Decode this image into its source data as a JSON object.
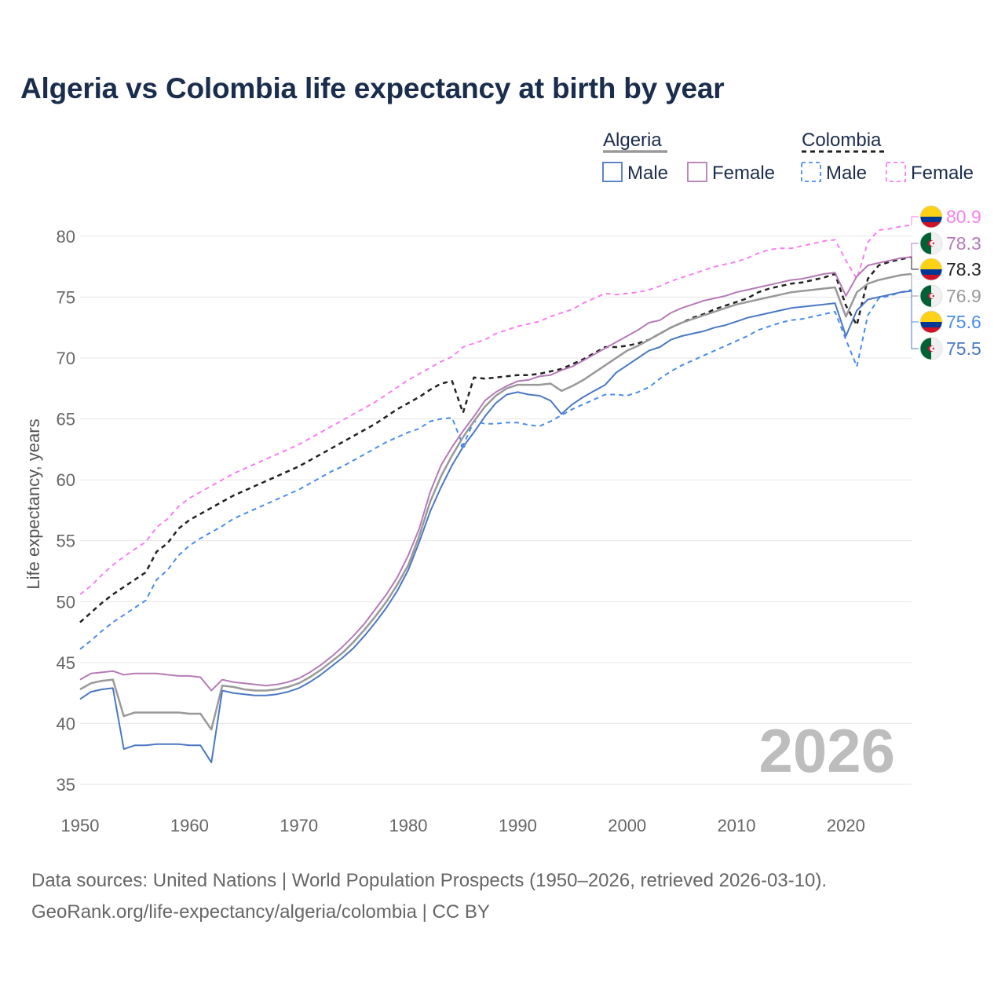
{
  "chart_data": {
    "type": "line",
    "title": "Algeria vs Colombia life expectancy at birth by year",
    "ylabel": "Life expectancy, years",
    "xlabel": "",
    "xlim": [
      1950,
      2026
    ],
    "ylim": [
      35,
      82.5
    ],
    "x_ticks": [
      1950,
      1960,
      1970,
      1980,
      1990,
      2000,
      2010,
      2020
    ],
    "y_ticks": [
      35,
      40,
      45,
      50,
      55,
      60,
      65,
      70,
      75,
      80
    ],
    "year_watermark": "2026",
    "legend": {
      "groups": [
        {
          "name": "Algeria",
          "items": [
            "Male",
            "Female"
          ]
        },
        {
          "name": "Colombia",
          "items": [
            "Male",
            "Female"
          ]
        }
      ]
    },
    "x": [
      1950,
      1951,
      1952,
      1953,
      1954,
      1955,
      1956,
      1957,
      1958,
      1959,
      1960,
      1961,
      1962,
      1963,
      1964,
      1965,
      1966,
      1967,
      1968,
      1969,
      1970,
      1971,
      1972,
      1973,
      1974,
      1975,
      1976,
      1977,
      1978,
      1979,
      1980,
      1981,
      1982,
      1983,
      1984,
      1985,
      1986,
      1987,
      1988,
      1989,
      1990,
      1991,
      1992,
      1993,
      1994,
      1995,
      1996,
      1997,
      1998,
      1999,
      2000,
      2001,
      2002,
      2003,
      2004,
      2005,
      2006,
      2007,
      2008,
      2009,
      2010,
      2011,
      2012,
      2013,
      2014,
      2015,
      2016,
      2017,
      2018,
      2019,
      2020,
      2021,
      2022,
      2023,
      2024,
      2025,
      2026
    ],
    "series": [
      {
        "name": "Colombia Female",
        "country": "Colombia",
        "sex": "Female",
        "color": "#f77ff0",
        "dash": "6,5",
        "width": 2,
        "values": [
          50.6,
          51.3,
          52.2,
          53.0,
          53.7,
          54.3,
          54.9,
          56.1,
          56.8,
          57.8,
          58.5,
          59.0,
          59.5,
          60.0,
          60.5,
          60.9,
          61.3,
          61.7,
          62.1,
          62.5,
          62.9,
          63.4,
          63.9,
          64.4,
          64.9,
          65.4,
          65.9,
          66.4,
          67.0,
          67.6,
          68.2,
          68.7,
          69.2,
          69.7,
          70.1,
          70.9,
          71.2,
          71.5,
          72.0,
          72.3,
          72.6,
          72.8,
          73.0,
          73.4,
          73.7,
          74.0,
          74.5,
          74.9,
          75.3,
          75.2,
          75.3,
          75.4,
          75.6,
          75.9,
          76.3,
          76.6,
          76.9,
          77.2,
          77.5,
          77.7,
          77.9,
          78.2,
          78.6,
          78.9,
          79.0,
          79.0,
          79.2,
          79.4,
          79.6,
          79.7,
          78.0,
          76.5,
          79.5,
          80.5,
          80.6,
          80.8,
          80.9
        ]
      },
      {
        "name": "Colombia Total",
        "country": "Colombia",
        "sex": "Total",
        "color": "#222222",
        "dash": "6,5",
        "width": 2.5,
        "values": [
          48.3,
          49.1,
          49.9,
          50.6,
          51.2,
          51.8,
          52.4,
          54.1,
          54.8,
          56.0,
          56.7,
          57.2,
          57.7,
          58.2,
          58.7,
          59.1,
          59.5,
          59.9,
          60.3,
          60.7,
          61.1,
          61.6,
          62.1,
          62.6,
          63.1,
          63.6,
          64.1,
          64.6,
          65.2,
          65.8,
          66.3,
          66.8,
          67.4,
          67.9,
          68.1,
          65.5,
          68.4,
          68.3,
          68.4,
          68.5,
          68.6,
          68.6,
          68.7,
          68.9,
          69.1,
          69.5,
          69.9,
          70.4,
          70.9,
          70.9,
          71.0,
          71.2,
          71.5,
          72.0,
          72.5,
          72.9,
          73.3,
          73.6,
          74.0,
          74.3,
          74.6,
          74.9,
          75.4,
          75.7,
          75.9,
          76.1,
          76.2,
          76.4,
          76.6,
          76.9,
          74.3,
          72.7,
          76.5,
          77.6,
          77.9,
          78.1,
          78.3
        ]
      },
      {
        "name": "Colombia Male",
        "country": "Colombia",
        "sex": "Male",
        "color": "#4a8de8",
        "dash": "6,5",
        "width": 2,
        "values": [
          46.1,
          46.8,
          47.6,
          48.3,
          48.9,
          49.5,
          50.1,
          51.8,
          52.6,
          53.8,
          54.6,
          55.2,
          55.7,
          56.2,
          56.8,
          57.2,
          57.6,
          58.0,
          58.4,
          58.8,
          59.2,
          59.7,
          60.2,
          60.7,
          61.1,
          61.6,
          62.1,
          62.6,
          63.1,
          63.5,
          63.9,
          64.2,
          64.8,
          65.0,
          65.1,
          62.8,
          64.8,
          64.6,
          64.6,
          64.7,
          64.7,
          64.5,
          64.4,
          64.8,
          65.3,
          65.8,
          66.2,
          66.6,
          67.0,
          67.0,
          66.9,
          67.2,
          67.6,
          68.3,
          68.9,
          69.4,
          69.8,
          70.2,
          70.6,
          71.0,
          71.4,
          71.8,
          72.3,
          72.6,
          72.9,
          73.1,
          73.2,
          73.4,
          73.6,
          73.8,
          71.5,
          69.3,
          73.5,
          74.9,
          75.1,
          75.4,
          75.6
        ]
      },
      {
        "name": "Algeria Female",
        "country": "Algeria",
        "sex": "Female",
        "color": "#b57bb5",
        "dash": "",
        "width": 2,
        "values": [
          43.6,
          44.1,
          44.2,
          44.3,
          44.0,
          44.1,
          44.1,
          44.1,
          44.0,
          43.9,
          43.9,
          43.8,
          42.7,
          43.6,
          43.4,
          43.3,
          43.2,
          43.1,
          43.2,
          43.4,
          43.7,
          44.2,
          44.8,
          45.5,
          46.3,
          47.2,
          48.2,
          49.4,
          50.6,
          52.0,
          53.8,
          56.0,
          59.0,
          61.2,
          62.7,
          64.0,
          65.2,
          66.5,
          67.2,
          67.7,
          68.1,
          68.2,
          68.5,
          68.6,
          69.0,
          69.3,
          69.8,
          70.3,
          70.8,
          71.3,
          71.8,
          72.3,
          72.9,
          73.1,
          73.7,
          74.1,
          74.4,
          74.7,
          74.9,
          75.1,
          75.4,
          75.6,
          75.8,
          76.0,
          76.2,
          76.4,
          76.5,
          76.7,
          76.9,
          77.0,
          75.1,
          76.7,
          77.6,
          77.8,
          78.0,
          78.2,
          78.3
        ]
      },
      {
        "name": "Algeria Total",
        "country": "Algeria",
        "sex": "Total",
        "color": "#999999",
        "dash": "",
        "width": 2.5,
        "values": [
          42.8,
          43.3,
          43.5,
          43.6,
          40.6,
          40.9,
          40.9,
          40.9,
          40.9,
          40.9,
          40.8,
          40.8,
          39.5,
          43.1,
          43.0,
          42.8,
          42.7,
          42.7,
          42.8,
          43.0,
          43.3,
          43.8,
          44.4,
          45.1,
          45.8,
          46.7,
          47.7,
          48.8,
          50.0,
          51.4,
          53.0,
          55.4,
          58.2,
          60.3,
          62.0,
          63.5,
          64.8,
          66.0,
          66.9,
          67.5,
          67.8,
          67.8,
          67.8,
          67.9,
          67.3,
          67.7,
          68.2,
          68.8,
          69.4,
          70.0,
          70.6,
          71.0,
          71.5,
          72.0,
          72.5,
          72.9,
          73.2,
          73.5,
          73.8,
          74.1,
          74.4,
          74.6,
          74.8,
          75.0,
          75.2,
          75.4,
          75.5,
          75.6,
          75.7,
          75.8,
          73.4,
          75.4,
          76.1,
          76.4,
          76.6,
          76.8,
          76.9
        ]
      },
      {
        "name": "Algeria Male",
        "country": "Algeria",
        "sex": "Male",
        "color": "#4a78c2",
        "dash": "",
        "width": 2,
        "values": [
          42.0,
          42.6,
          42.8,
          42.9,
          37.9,
          38.2,
          38.2,
          38.3,
          38.3,
          38.3,
          38.2,
          38.2,
          36.8,
          42.7,
          42.5,
          42.4,
          42.3,
          42.3,
          42.4,
          42.6,
          42.9,
          43.4,
          44.0,
          44.7,
          45.4,
          46.2,
          47.2,
          48.3,
          49.5,
          50.9,
          52.6,
          54.9,
          57.4,
          59.4,
          61.2,
          62.7,
          63.9,
          65.2,
          66.3,
          67.0,
          67.2,
          67.0,
          66.9,
          66.5,
          65.4,
          66.2,
          66.8,
          67.3,
          67.8,
          68.8,
          69.4,
          70.0,
          70.6,
          70.9,
          71.5,
          71.8,
          72.0,
          72.2,
          72.5,
          72.7,
          73.0,
          73.3,
          73.5,
          73.7,
          73.9,
          74.1,
          74.2,
          74.3,
          74.4,
          74.5,
          71.8,
          73.9,
          74.8,
          75.0,
          75.2,
          75.4,
          75.5
        ]
      }
    ],
    "end_labels": [
      {
        "text": "80.9",
        "series": "Colombia Female",
        "flag": "colombia",
        "color": "#f77ff0"
      },
      {
        "text": "78.3",
        "series": "Algeria Female",
        "flag": "algeria",
        "color": "#b57bb5"
      },
      {
        "text": "78.3",
        "series": "Colombia Total",
        "flag": "colombia",
        "color": "#222222"
      },
      {
        "text": "76.9",
        "series": "Algeria Total",
        "flag": "algeria",
        "color": "#999999"
      },
      {
        "text": "75.6",
        "series": "Colombia Male",
        "flag": "colombia",
        "color": "#4a8de8"
      },
      {
        "text": "75.5",
        "series": "Algeria Male",
        "flag": "algeria",
        "color": "#4a78c2"
      }
    ]
  },
  "sources": {
    "line1": "Data sources: United Nations | World Population Prospects (1950–2026, retrieved 2026-03-10).",
    "line2": "GeoRank.org/life-expectancy/algeria/colombia | CC BY"
  },
  "colors": {
    "title": "#1b2d4c",
    "grid": "#e6e6e6",
    "colombia_yellow": "#fcd116",
    "colombia_blue": "#003893",
    "colombia_red": "#ce1126",
    "algeria_green": "#006233",
    "algeria_white": "#ffffff",
    "algeria_red": "#d21034"
  }
}
